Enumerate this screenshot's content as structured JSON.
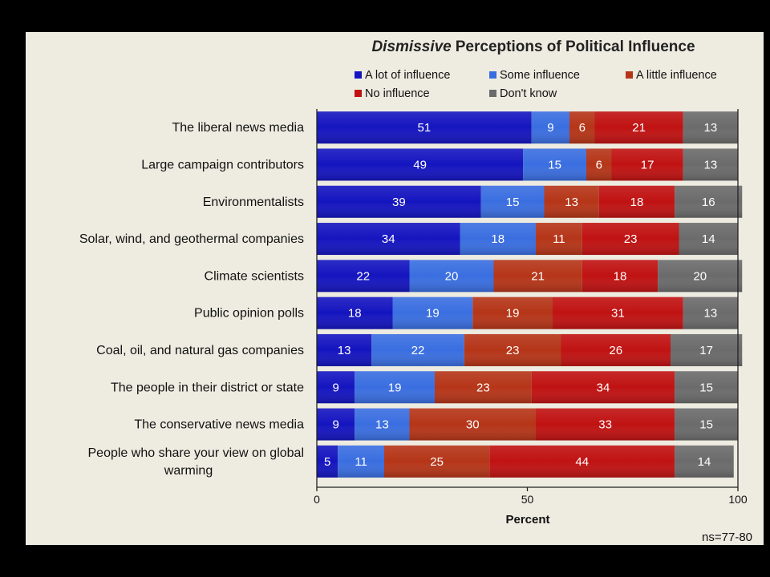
{
  "chart_data": {
    "type": "bar",
    "orientation": "horizontal",
    "stacked": true,
    "title_emphasis": "Dismissive",
    "title_rest": "Perceptions of Political Influence",
    "xlabel": "Percent",
    "xlim": [
      0,
      100
    ],
    "xticks": [
      "0",
      "50",
      "100"
    ],
    "note": "ns=77-80",
    "legend_position": "top-right",
    "categories": [
      [
        "The liberal news media"
      ],
      [
        "Large campaign contributors"
      ],
      [
        "Environmentalists"
      ],
      [
        "Solar, wind, and geothermal companies"
      ],
      [
        "Climate scientists"
      ],
      [
        "Public opinion polls"
      ],
      [
        "Coal, oil, and natural gas companies"
      ],
      [
        "The people in their district or state"
      ],
      [
        "The conservative news media"
      ],
      [
        "People who share your view on global",
        "warming"
      ]
    ],
    "series": [
      {
        "name": "A lot of influence",
        "color": "#1515c0",
        "values": [
          51,
          49,
          39,
          34,
          22,
          18,
          13,
          9,
          9,
          5
        ]
      },
      {
        "name": "Some influence",
        "color": "#3a6ee0",
        "values": [
          9,
          15,
          15,
          18,
          20,
          19,
          22,
          19,
          13,
          11
        ]
      },
      {
        "name": "A little influence",
        "color": "#b53518",
        "values": [
          6,
          6,
          13,
          11,
          21,
          19,
          23,
          23,
          30,
          25
        ]
      },
      {
        "name": "No influence",
        "color": "#c01212",
        "values": [
          21,
          17,
          18,
          23,
          18,
          31,
          26,
          34,
          33,
          44
        ]
      },
      {
        "name": "Don't know",
        "color": "#6b6b6b",
        "values": [
          13,
          13,
          16,
          14,
          20,
          13,
          17,
          15,
          15,
          14
        ]
      }
    ]
  }
}
